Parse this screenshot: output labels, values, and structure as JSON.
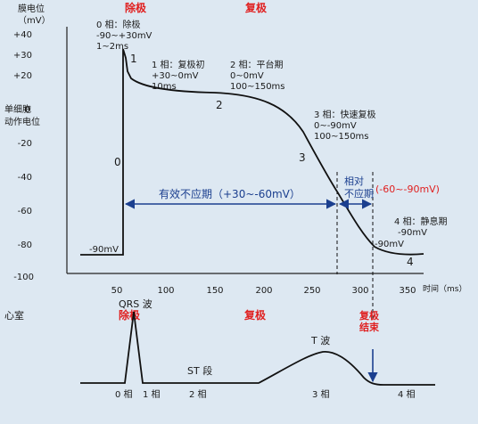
{
  "top": {
    "y_axis_title_1": "膜电位",
    "y_axis_title_2": "（mV）",
    "side_label_1": "单细胞",
    "side_label_2": "动作电位",
    "y_ticks": [
      "+40",
      "+30",
      "+20",
      "0",
      "-20",
      "-40",
      "-60",
      "-80",
      "-100"
    ],
    "x_ticks": [
      "50",
      "100",
      "150",
      "200",
      "250",
      "300",
      "350"
    ],
    "x_axis_title": "时间（ms）",
    "header_depol": "除极",
    "header_repol": "复极",
    "phase0_title": "0 相：除极",
    "phase0_range": "-90~+30mV",
    "phase0_time": "1~2ms",
    "phase1_title": "1 相：复极初",
    "phase1_range": "+30~0mV",
    "phase1_time": "10ms",
    "phase2_title": "2 相：平台期",
    "phase2_range": "0~0mV",
    "phase2_time": "100~150ms",
    "phase3_title": "3 相：快速复极",
    "phase3_range": "0~-90mV",
    "phase3_time": "100~150ms",
    "phase4_title": "4 相：静息期",
    "phase4_range": "-90mV",
    "curve_num_0": "0",
    "curve_num_1": "1",
    "curve_num_2": "2",
    "curve_num_3": "3",
    "curve_num_4": "4",
    "rest_label_left": "-90mV",
    "rest_label_right": "-90mV",
    "erp_label": "有效不应期（+30~-60mV）",
    "rrp_label_1": "相对",
    "rrp_label_2": "不应期",
    "rrp_range": "(-60~-90mV)"
  },
  "bottom": {
    "ventricle_label": "心室",
    "header_depol": "除极",
    "header_repol": "复极",
    "qrs_label": "QRS 波",
    "st_label": "ST 段",
    "t_label": "T 波",
    "repol_end_1": "复极",
    "repol_end_2": "结束",
    "phase_0": "0 相",
    "phase_1": "1 相",
    "phase_2": "2 相",
    "phase_3": "3 相",
    "phase_4": "4 相"
  },
  "colors": {
    "accent_red": "#e02020",
    "arrow_blue": "#1b3f8f",
    "background": "#dde8f2"
  }
}
